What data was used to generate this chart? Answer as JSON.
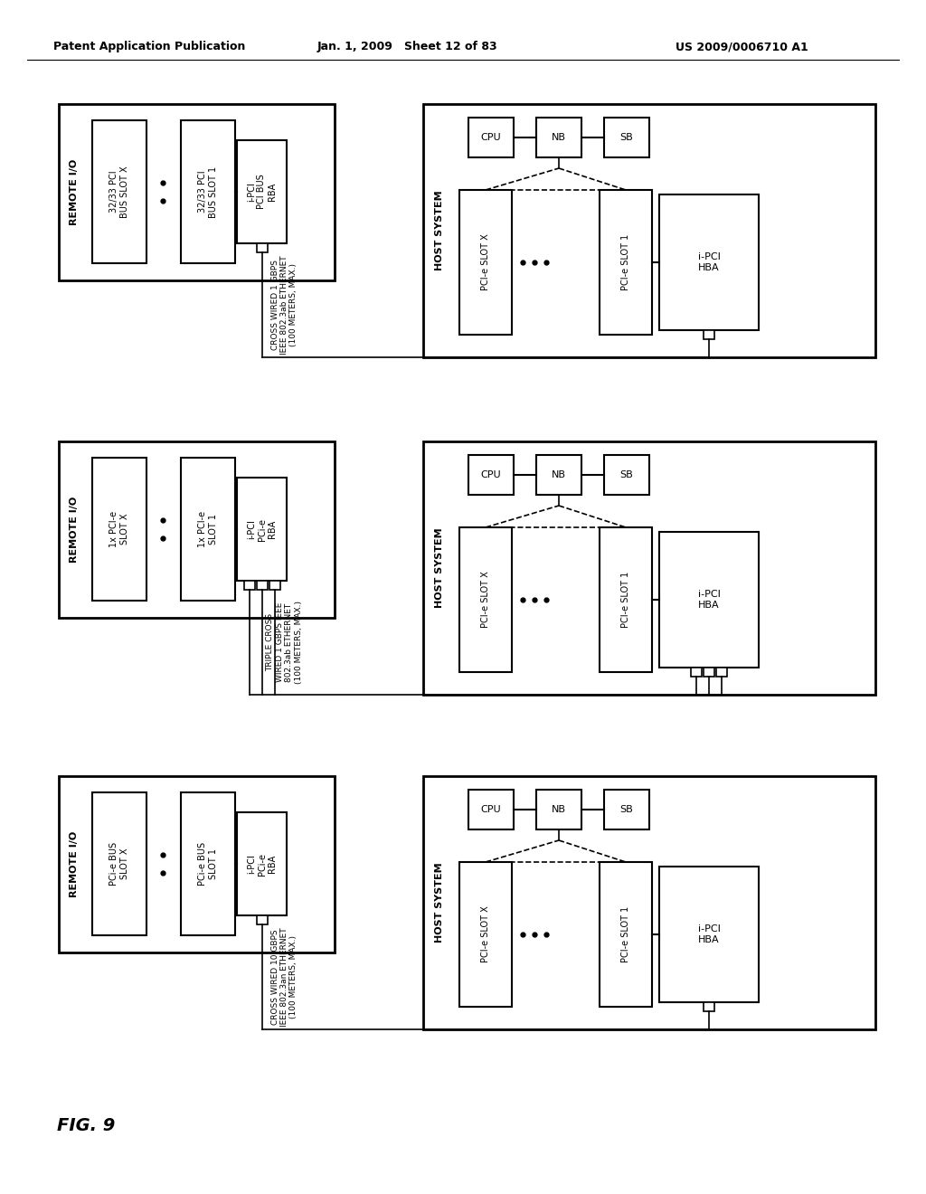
{
  "bg_color": "#ffffff",
  "header_left": "Patent Application Publication",
  "header_mid": "Jan. 1, 2009   Sheet 12 of 83",
  "header_right": "US 2009/0006710 A1",
  "figure_label": "FIG. 9",
  "diagrams": [
    {
      "remote_io_label": "REMOTE I/O",
      "slot1_label": "32/33 PCI\nBUS SLOT X",
      "slot2_label": "32/33 PCI\nBUS SLOT 1",
      "rba_label": "i-PCI\nPCI BUS\nRBA",
      "conn_label": "CROSS WIRED 1 GBPS\nIEEE 802.3ab ETHERNET\n(100 METERS, MAX.)",
      "host_label": "HOST SYSTEM",
      "cpu_label": "CPU",
      "nb_label": "NB",
      "sb_label": "SB",
      "hslot1_label": "PCI-e SLOT X",
      "hslot2_label": "PCI-e SLOT 1",
      "hba_label": "i-PCI\nHBA",
      "num_eth_lines": 1
    },
    {
      "remote_io_label": "REMOTE I/O",
      "slot1_label": "1x PCI-e\nSLOT X",
      "slot2_label": "1x PCI-e\nSLOT 1",
      "rba_label": "i-PCI\nPCi-e\nRBA",
      "conn_label": "TRIPLE CROSS\nWIRED 1 GBPS IEEE\n802.3ab ETHERNET\n(100 METERS, MAX.)",
      "host_label": "HOST SYSTEM",
      "cpu_label": "CPU",
      "nb_label": "NB",
      "sb_label": "SB",
      "hslot1_label": "PCI-e SLOT X",
      "hslot2_label": "PCI-e SLOT 1",
      "hba_label": "i-PCI\nHBA",
      "num_eth_lines": 3
    },
    {
      "remote_io_label": "REMOTE I/O",
      "slot1_label": "PCi-e BUS\nSLOT X",
      "slot2_label": "PCi-e BUS\nSLOT 1",
      "rba_label": "i-PCI\nPCi-e\nRBA",
      "conn_label": "CROSS WIRED 10 GBPS\nIEEE 802.3an ETHERNET\n(100 METERS, MAX.)",
      "host_label": "HOST SYSTEM",
      "cpu_label": "CPU",
      "nb_label": "NB",
      "sb_label": "SB",
      "hslot1_label": "PCI-e SLOT X",
      "hslot2_label": "PCI-e SLOT 1",
      "hba_label": "i-PCI\nHBA",
      "num_eth_lines": 1
    }
  ]
}
